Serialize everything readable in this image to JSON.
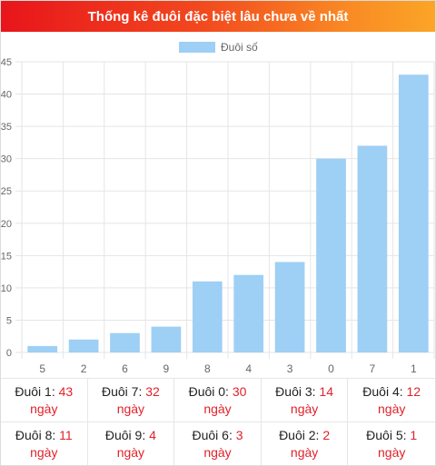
{
  "header": {
    "title": "Thống kê đuôi đặc biệt lâu chưa về nhất"
  },
  "colors": {
    "bar": "#9ecff5",
    "accent": "#e0222a",
    "header_start": "#e8151b",
    "header_end": "#fba527"
  },
  "chart_data": {
    "type": "bar",
    "title": "",
    "xlabel": "",
    "ylabel": "",
    "categories": [
      "5",
      "2",
      "6",
      "9",
      "8",
      "4",
      "3",
      "0",
      "7",
      "1"
    ],
    "series": [
      {
        "name": "Đuôi số",
        "values": [
          1,
          2,
          3,
          4,
          11,
          12,
          14,
          30,
          32,
          43
        ]
      }
    ],
    "ylim": [
      0,
      45
    ],
    "yticks": [
      0,
      5,
      10,
      15,
      20,
      25,
      30,
      35,
      40,
      45
    ],
    "grid": true,
    "legend_position": "top-center"
  },
  "stats": [
    {
      "label": "Đuôi 1:",
      "value": "43",
      "unit": "ngày"
    },
    {
      "label": "Đuôi 7:",
      "value": "32",
      "unit": "ngày"
    },
    {
      "label": "Đuôi 0:",
      "value": "30",
      "unit": "ngày"
    },
    {
      "label": "Đuôi 3:",
      "value": "14",
      "unit": "ngày"
    },
    {
      "label": "Đuôi 4:",
      "value": "12",
      "unit": "ngày"
    },
    {
      "label": "Đuôi 8:",
      "value": "11",
      "unit": "ngày"
    },
    {
      "label": "Đuôi 9:",
      "value": "4",
      "unit": "ngày"
    },
    {
      "label": "Đuôi 6:",
      "value": "3",
      "unit": "ngày"
    },
    {
      "label": "Đuôi 2:",
      "value": "2",
      "unit": "ngày"
    },
    {
      "label": "Đuôi 5:",
      "value": "1",
      "unit": "ngày"
    }
  ]
}
